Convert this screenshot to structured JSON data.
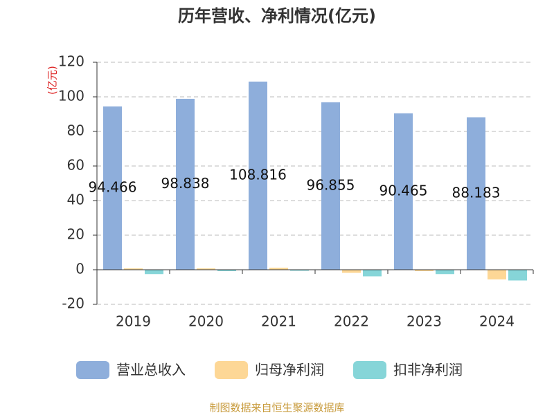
{
  "chart_data": {
    "type": "bar",
    "title": "历年营收、净利情况(亿元)",
    "y_label": "(亿元)",
    "categories": [
      "2019",
      "2020",
      "2021",
      "2022",
      "2023",
      "2024"
    ],
    "series": [
      {
        "name": "营业总收入",
        "color": "#8eaedb",
        "values": [
          94.466,
          98.838,
          108.816,
          96.855,
          90.465,
          88.183
        ]
      },
      {
        "name": "归母净利润",
        "color": "#fdd796",
        "values": [
          0.8,
          0.8,
          1.2,
          -1.8,
          -0.8,
          -5.6
        ]
      },
      {
        "name": "扣非净利润",
        "color": "#86d5d8",
        "values": [
          -2.5,
          -0.8,
          -0.6,
          -3.8,
          -2.5,
          -6.2
        ]
      }
    ],
    "ylim": [
      -20,
      120
    ],
    "yticks": [
      -20,
      0,
      20,
      40,
      60,
      80,
      100,
      120
    ],
    "grid": true,
    "source": "制图数据来自恒生聚源数据库"
  }
}
